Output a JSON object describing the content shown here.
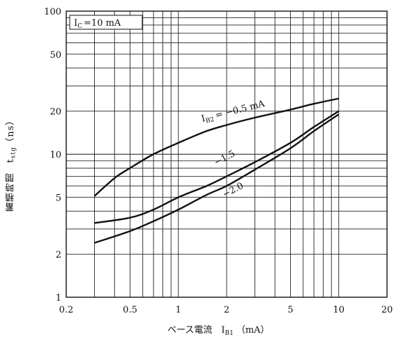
{
  "chart_data": {
    "type": "line",
    "x_scale": "log",
    "y_scale": "log",
    "xlim": [
      0.2,
      20
    ],
    "ylim": [
      1,
      100
    ],
    "x_ticks": [
      "0.2",
      "0.5",
      "1",
      "2",
      "5",
      "10",
      "20"
    ],
    "y_ticks": [
      "1",
      "2",
      "5",
      "10",
      "20",
      "50",
      "100"
    ],
    "xlabel": "ベース電流　I_B1（mA）",
    "ylabel": "蓄積時間　t_stg（ns）",
    "condition": "I_C=10 mA",
    "grid": true,
    "series": [
      {
        "name": "I_B2 = −0.5 mA",
        "x": [
          0.3,
          0.4,
          0.5,
          0.7,
          1,
          1.5,
          2,
          3,
          5,
          7,
          10
        ],
        "y": [
          5.1,
          6.8,
          8.0,
          10.0,
          12.0,
          14.5,
          16.0,
          18.0,
          20.5,
          22.5,
          24.5
        ]
      },
      {
        "name": "−1.5",
        "x": [
          0.3,
          0.5,
          0.7,
          1,
          1.5,
          2,
          3,
          5,
          7,
          10
        ],
        "y": [
          3.3,
          3.6,
          4.1,
          5.0,
          6.0,
          7.0,
          8.8,
          12.0,
          15.5,
          20.0
        ]
      },
      {
        "name": "−2.0",
        "x": [
          0.3,
          0.5,
          0.7,
          1,
          1.5,
          2,
          3,
          5,
          7,
          10
        ],
        "y": [
          2.4,
          2.9,
          3.4,
          4.1,
          5.2,
          6.0,
          7.8,
          11.0,
          14.5,
          19.0
        ]
      }
    ],
    "series_labels": {
      "s0_prefix": "I",
      "s0_sub": "B2",
      "s0_rest": "= −0.5 mA",
      "s1": "−1.5",
      "s2": "−2.0"
    }
  },
  "labels": {
    "condition_main": "I",
    "condition_sub": "C",
    "condition_rest": "=10  mA",
    "xlabel_main": "ベース電流　I",
    "xlabel_sub": "B1",
    "xlabel_unit": "（mA）",
    "ylabel": "蓄積時間　t",
    "ylabel_sub": "stg",
    "ylabel_unit": "（ns）"
  }
}
